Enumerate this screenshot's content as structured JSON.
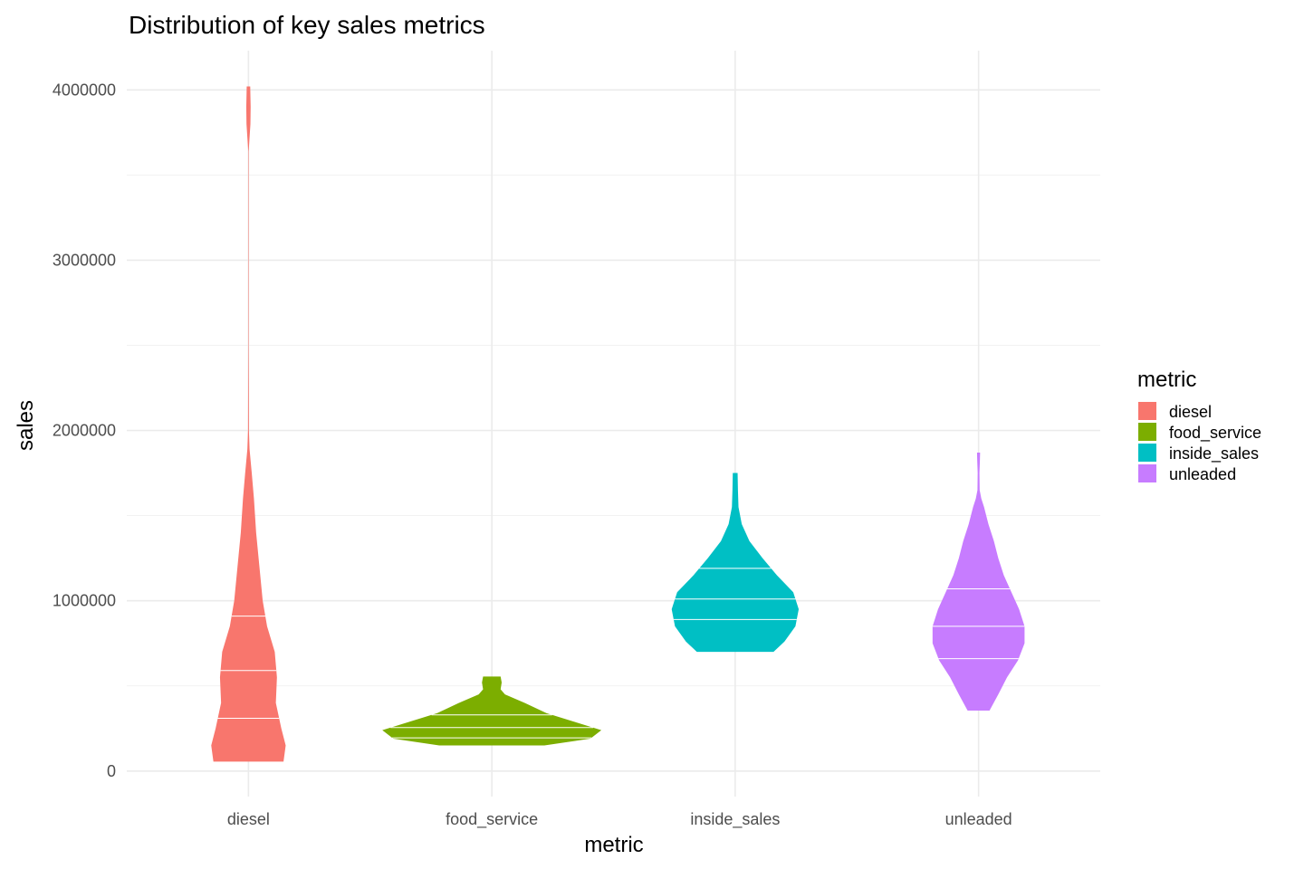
{
  "chart_data": {
    "type": "violin",
    "title": "Distribution of key sales metrics",
    "xlabel": "metric",
    "ylabel": "sales",
    "categories": [
      "diesel",
      "food_service",
      "inside_sales",
      "unleaded"
    ],
    "ylim": [
      -150000,
      4230000
    ],
    "y_ticks": [
      0,
      1000000,
      2000000,
      3000000,
      4000000
    ],
    "y_tick_labels": [
      "0",
      "1000000",
      "2000000",
      "3000000",
      "4000000"
    ],
    "grid": true,
    "legend": {
      "title": "metric",
      "position": "right",
      "entries": [
        "diesel",
        "food_service",
        "inside_sales",
        "unleaded"
      ]
    },
    "colors": {
      "diesel": "#F8766D",
      "food_service": "#7CAE00",
      "inside_sales": "#00BFC4",
      "unleaded": "#C77CFF"
    },
    "series": [
      {
        "name": "diesel",
        "min": 55000,
        "max": 4020000,
        "quantiles": [
          310000,
          590000,
          910000
        ],
        "density": [
          [
            55000,
            0.32
          ],
          [
            150000,
            0.34
          ],
          [
            250000,
            0.3
          ],
          [
            400000,
            0.25
          ],
          [
            550000,
            0.26
          ],
          [
            700000,
            0.24
          ],
          [
            850000,
            0.17
          ],
          [
            1000000,
            0.13
          ],
          [
            1200000,
            0.1
          ],
          [
            1400000,
            0.07
          ],
          [
            1600000,
            0.05
          ],
          [
            1750000,
            0.03
          ],
          [
            1890000,
            0.01
          ],
          [
            2000000,
            0.004
          ],
          [
            2500000,
            0.002
          ],
          [
            3000000,
            0.002
          ],
          [
            3640000,
            0.002
          ],
          [
            3800000,
            0.018
          ],
          [
            3900000,
            0.02
          ],
          [
            4020000,
            0.016
          ]
        ]
      },
      {
        "name": "food_service",
        "min": 150000,
        "max": 555000,
        "quantiles": [
          195000,
          255000,
          330000
        ],
        "density": [
          [
            150000,
            0.48
          ],
          [
            190000,
            0.9
          ],
          [
            240000,
            1.0
          ],
          [
            290000,
            0.75
          ],
          [
            340000,
            0.5
          ],
          [
            400000,
            0.3
          ],
          [
            450000,
            0.12
          ],
          [
            480000,
            0.08
          ],
          [
            520000,
            0.09
          ],
          [
            555000,
            0.08
          ]
        ]
      },
      {
        "name": "inside_sales",
        "min": 700000,
        "max": 1750000,
        "quantiles": [
          890000,
          1010000,
          1190000
        ],
        "density": [
          [
            700000,
            0.35
          ],
          [
            760000,
            0.45
          ],
          [
            850000,
            0.55
          ],
          [
            950000,
            0.58
          ],
          [
            1050000,
            0.53
          ],
          [
            1150000,
            0.38
          ],
          [
            1250000,
            0.25
          ],
          [
            1350000,
            0.13
          ],
          [
            1450000,
            0.06
          ],
          [
            1550000,
            0.03
          ],
          [
            1650000,
            0.025
          ],
          [
            1750000,
            0.022
          ]
        ]
      },
      {
        "name": "unleaded",
        "min": 355000,
        "max": 1870000,
        "quantiles": [
          660000,
          850000,
          1070000
        ],
        "density": [
          [
            355000,
            0.1
          ],
          [
            450000,
            0.18
          ],
          [
            550000,
            0.26
          ],
          [
            650000,
            0.36
          ],
          [
            750000,
            0.42
          ],
          [
            850000,
            0.42
          ],
          [
            950000,
            0.37
          ],
          [
            1050000,
            0.3
          ],
          [
            1150000,
            0.23
          ],
          [
            1250000,
            0.18
          ],
          [
            1350000,
            0.14
          ],
          [
            1450000,
            0.09
          ],
          [
            1550000,
            0.05
          ],
          [
            1600000,
            0.025
          ],
          [
            1650000,
            0.01
          ],
          [
            1750000,
            0.008
          ],
          [
            1820000,
            0.012
          ],
          [
            1870000,
            0.014
          ]
        ]
      }
    ]
  }
}
